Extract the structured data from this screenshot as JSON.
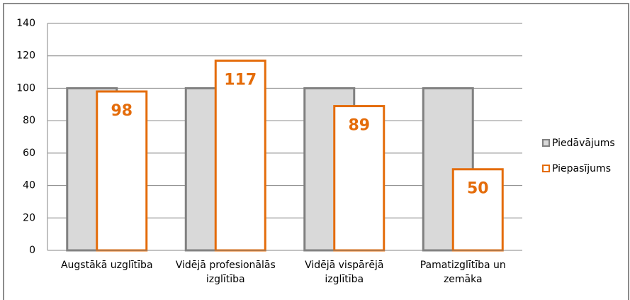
{
  "chart_data": {
    "type": "bar",
    "categories": [
      "Augstākā uzglītība",
      "Vidējā profesionālās izglītība",
      "Vidējā vispārējā izglītība",
      "Pamatizglītība un zemāka"
    ],
    "series": [
      {
        "name": "Piedāvājums",
        "color": "#808080",
        "fill": "#d9d9d9",
        "values": [
          100,
          100,
          100,
          100
        ]
      },
      {
        "name": "Piepasījums",
        "color": "#e46c0a",
        "fill": "#ffffff",
        "values": [
          98,
          117,
          89,
          50
        ],
        "data_labels": true
      }
    ],
    "ylim": [
      0,
      140
    ],
    "yticks": [
      0,
      20,
      40,
      60,
      80,
      100,
      120,
      140
    ],
    "grid": true,
    "legend": "right"
  }
}
